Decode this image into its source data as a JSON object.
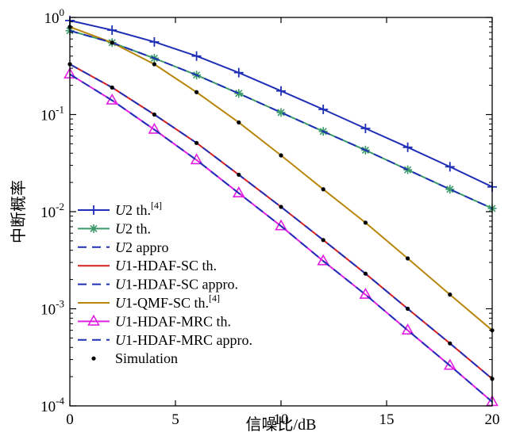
{
  "chart_data": {
    "type": "line",
    "xlabel": "信噪比/dB",
    "ylabel": "中断概率",
    "xlim": [
      0,
      20
    ],
    "ylim": [
      0.0001,
      1
    ],
    "y_scale": "log",
    "grid": false,
    "legend_placement": "bottom-left",
    "x_ticks": [
      {
        "value": 0,
        "label": "0"
      },
      {
        "value": 5,
        "label": "5"
      },
      {
        "value": 10,
        "label": "10"
      },
      {
        "value": 15,
        "label": "15"
      },
      {
        "value": 20,
        "label": "20"
      }
    ],
    "y_ticks": [
      {
        "value": 1,
        "base": "10",
        "exp": "0"
      },
      {
        "value": 0.1,
        "base": "10",
        "exp": "-1"
      },
      {
        "value": 0.01,
        "base": "10",
        "exp": "-2"
      },
      {
        "value": 0.001,
        "base": "10",
        "exp": "-3"
      },
      {
        "value": 0.0001,
        "base": "10",
        "exp": "-4"
      }
    ],
    "x": [
      0,
      2,
      4,
      6,
      8,
      10,
      12,
      14,
      16,
      18,
      20
    ],
    "series": [
      {
        "legend": {
          "prefix": "U",
          "rest": "2 th.",
          "sup": "[4]"
        },
        "color": "#1f2fb5",
        "style": "solid",
        "marker": "plus",
        "values": [
          0.93,
          0.74,
          0.56,
          0.4,
          0.27,
          0.175,
          0.113,
          0.072,
          0.046,
          0.029,
          0.018
        ]
      },
      {
        "legend": {
          "prefix": "U",
          "rest": "2 th.",
          "sup": ""
        },
        "color": "#3c9a6a",
        "style": "solid",
        "marker": "star",
        "values": [
          0.73,
          0.55,
          0.38,
          0.255,
          0.165,
          0.105,
          0.067,
          0.043,
          0.027,
          0.017,
          0.0108
        ]
      },
      {
        "legend": {
          "prefix": "U",
          "rest": "2 appro",
          "sup": ""
        },
        "color": "#1f2fb5",
        "style": "dashed",
        "marker": "none",
        "values": [
          0.73,
          0.55,
          0.38,
          0.255,
          0.165,
          0.105,
          0.067,
          0.043,
          0.027,
          0.017,
          0.0108
        ]
      },
      {
        "legend": {
          "prefix": "U",
          "rest": "1-HDAF-SC th.",
          "sup": ""
        },
        "color": "#d62020",
        "style": "solid",
        "marker": "none",
        "values": [
          0.33,
          0.19,
          0.1,
          0.051,
          0.024,
          0.0112,
          0.0051,
          0.0023,
          0.001,
          0.00044,
          0.00019
        ]
      },
      {
        "legend": {
          "prefix": "U",
          "rest": "1-HDAF-SC appro.",
          "sup": ""
        },
        "color": "#1f2fb5",
        "style": "dashed",
        "marker": "none",
        "values": [
          0.33,
          0.19,
          0.1,
          0.051,
          0.024,
          0.0112,
          0.0051,
          0.0023,
          0.001,
          0.00044,
          0.00019
        ]
      },
      {
        "legend": {
          "prefix": "U",
          "rest": "1-QMF-SC th.",
          "sup": "[4]"
        },
        "color": "#b8860b",
        "style": "solid",
        "marker": "none",
        "values": [
          0.8,
          0.55,
          0.33,
          0.17,
          0.083,
          0.038,
          0.017,
          0.0077,
          0.0033,
          0.0014,
          0.0006
        ]
      },
      {
        "legend": {
          "prefix": "U",
          "rest": "1-HDAF-MRC th.",
          "sup": ""
        },
        "color": "#e020e0",
        "style": "solid",
        "marker": "triangle",
        "values": [
          0.26,
          0.14,
          0.07,
          0.034,
          0.0155,
          0.0071,
          0.0031,
          0.0014,
          0.0006,
          0.00026,
          0.00011
        ]
      },
      {
        "legend": {
          "prefix": "U",
          "rest": "1-HDAF-MRC appro.",
          "sup": ""
        },
        "color": "#1f2fb5",
        "style": "dashed",
        "marker": "none",
        "values": [
          0.26,
          0.14,
          0.07,
          0.034,
          0.0155,
          0.0071,
          0.0031,
          0.0014,
          0.0006,
          0.00026,
          0.00011
        ]
      }
    ],
    "simulation": {
      "legend": "Simulation",
      "marker": "dot",
      "color": "#000000",
      "points": [
        [
          0,
          0.33
        ],
        [
          2,
          0.19
        ],
        [
          4,
          0.1
        ],
        [
          6,
          0.051
        ],
        [
          8,
          0.024
        ],
        [
          10,
          0.0112
        ],
        [
          12,
          0.0051
        ],
        [
          14,
          0.0023
        ],
        [
          16,
          0.001
        ],
        [
          18,
          0.00044
        ],
        [
          20,
          0.00019
        ],
        [
          0,
          0.8
        ],
        [
          2,
          0.55
        ],
        [
          4,
          0.33
        ],
        [
          6,
          0.17
        ],
        [
          8,
          0.083
        ],
        [
          10,
          0.038
        ],
        [
          12,
          0.017
        ],
        [
          14,
          0.0077
        ],
        [
          16,
          0.0033
        ],
        [
          18,
          0.0014
        ],
        [
          20,
          0.0006
        ]
      ]
    }
  }
}
